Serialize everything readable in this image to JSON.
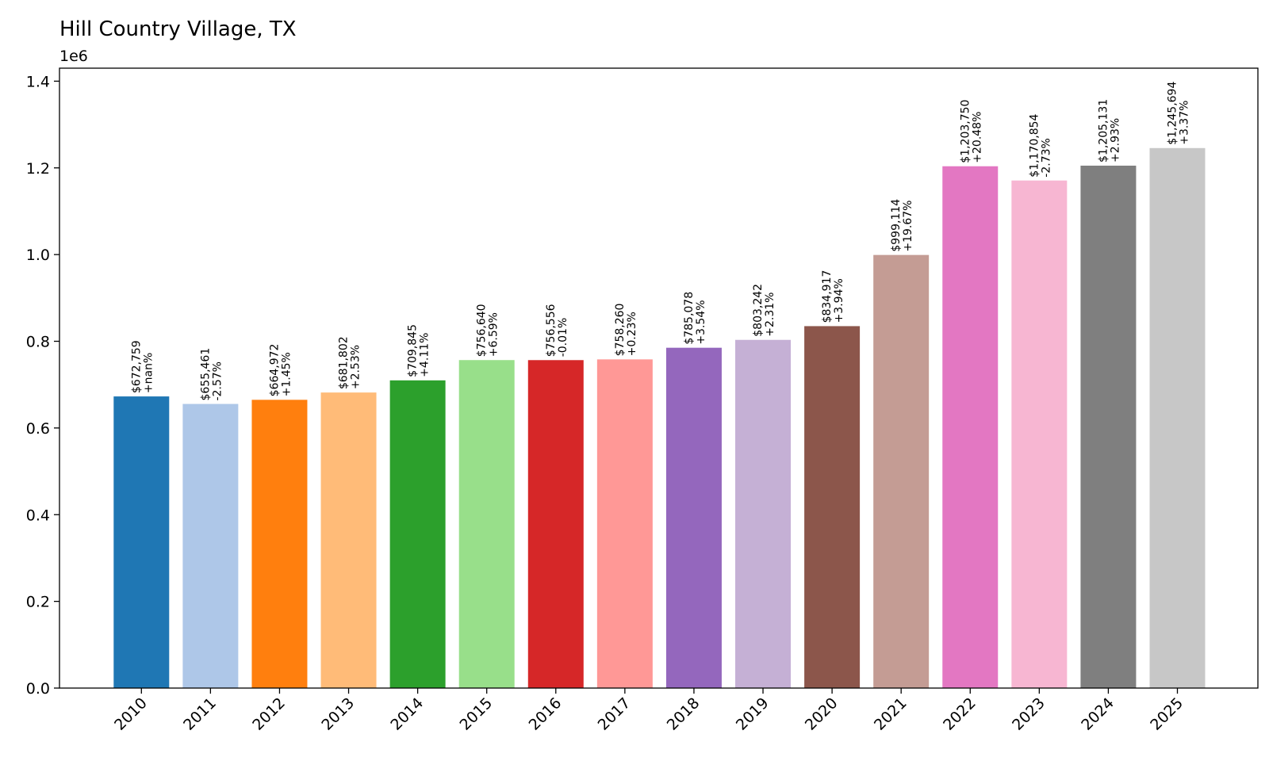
{
  "chart_data": {
    "type": "bar",
    "title": "Hill Country Village, TX",
    "offset_text": "1e6",
    "xlabel": "",
    "ylabel": "",
    "ylim": [
      0,
      1.43
    ],
    "y_scale_factor": 1000000,
    "yticks": [
      0.0,
      0.2,
      0.4,
      0.6,
      0.8,
      1.0,
      1.2,
      1.4
    ],
    "ytick_labels": [
      "0.0",
      "0.2",
      "0.4",
      "0.6",
      "0.8",
      "1.0",
      "1.2",
      "1.4"
    ],
    "grid": false,
    "categories": [
      "2010",
      "2011",
      "2012",
      "2013",
      "2014",
      "2015",
      "2016",
      "2017",
      "2018",
      "2019",
      "2020",
      "2021",
      "2022",
      "2023",
      "2024",
      "2025"
    ],
    "values": [
      672759,
      655461,
      664972,
      681802,
      709845,
      756640,
      756556,
      758260,
      785078,
      803242,
      834917,
      999114,
      1203750,
      1170854,
      1205131,
      1245694
    ],
    "value_labels": [
      "$672,759",
      "$655,461",
      "$664,972",
      "$681,802",
      "$709,845",
      "$756,640",
      "$756,556",
      "$758,260",
      "$785,078",
      "$803,242",
      "$834,917",
      "$999,114",
      "$1,203,750",
      "$1,170,854",
      "$1,205,131",
      "$1,245,694"
    ],
    "change_labels": [
      "+nan%",
      "-2.57%",
      "+1.45%",
      "+2.53%",
      "+4.11%",
      "+6.59%",
      "-0.01%",
      "+0.23%",
      "+3.54%",
      "+2.31%",
      "+3.94%",
      "+19.67%",
      "+20.48%",
      "-2.73%",
      "+2.93%",
      "+3.37%"
    ],
    "colors": [
      "#1f77b4",
      "#aec7e8",
      "#ff7f0e",
      "#ffbb78",
      "#2ca02c",
      "#98df8a",
      "#d62728",
      "#ff9896",
      "#9467bd",
      "#c5b0d5",
      "#8c564b",
      "#c49c94",
      "#e377c2",
      "#f7b6d2",
      "#7f7f7f",
      "#c7c7c7"
    ]
  }
}
